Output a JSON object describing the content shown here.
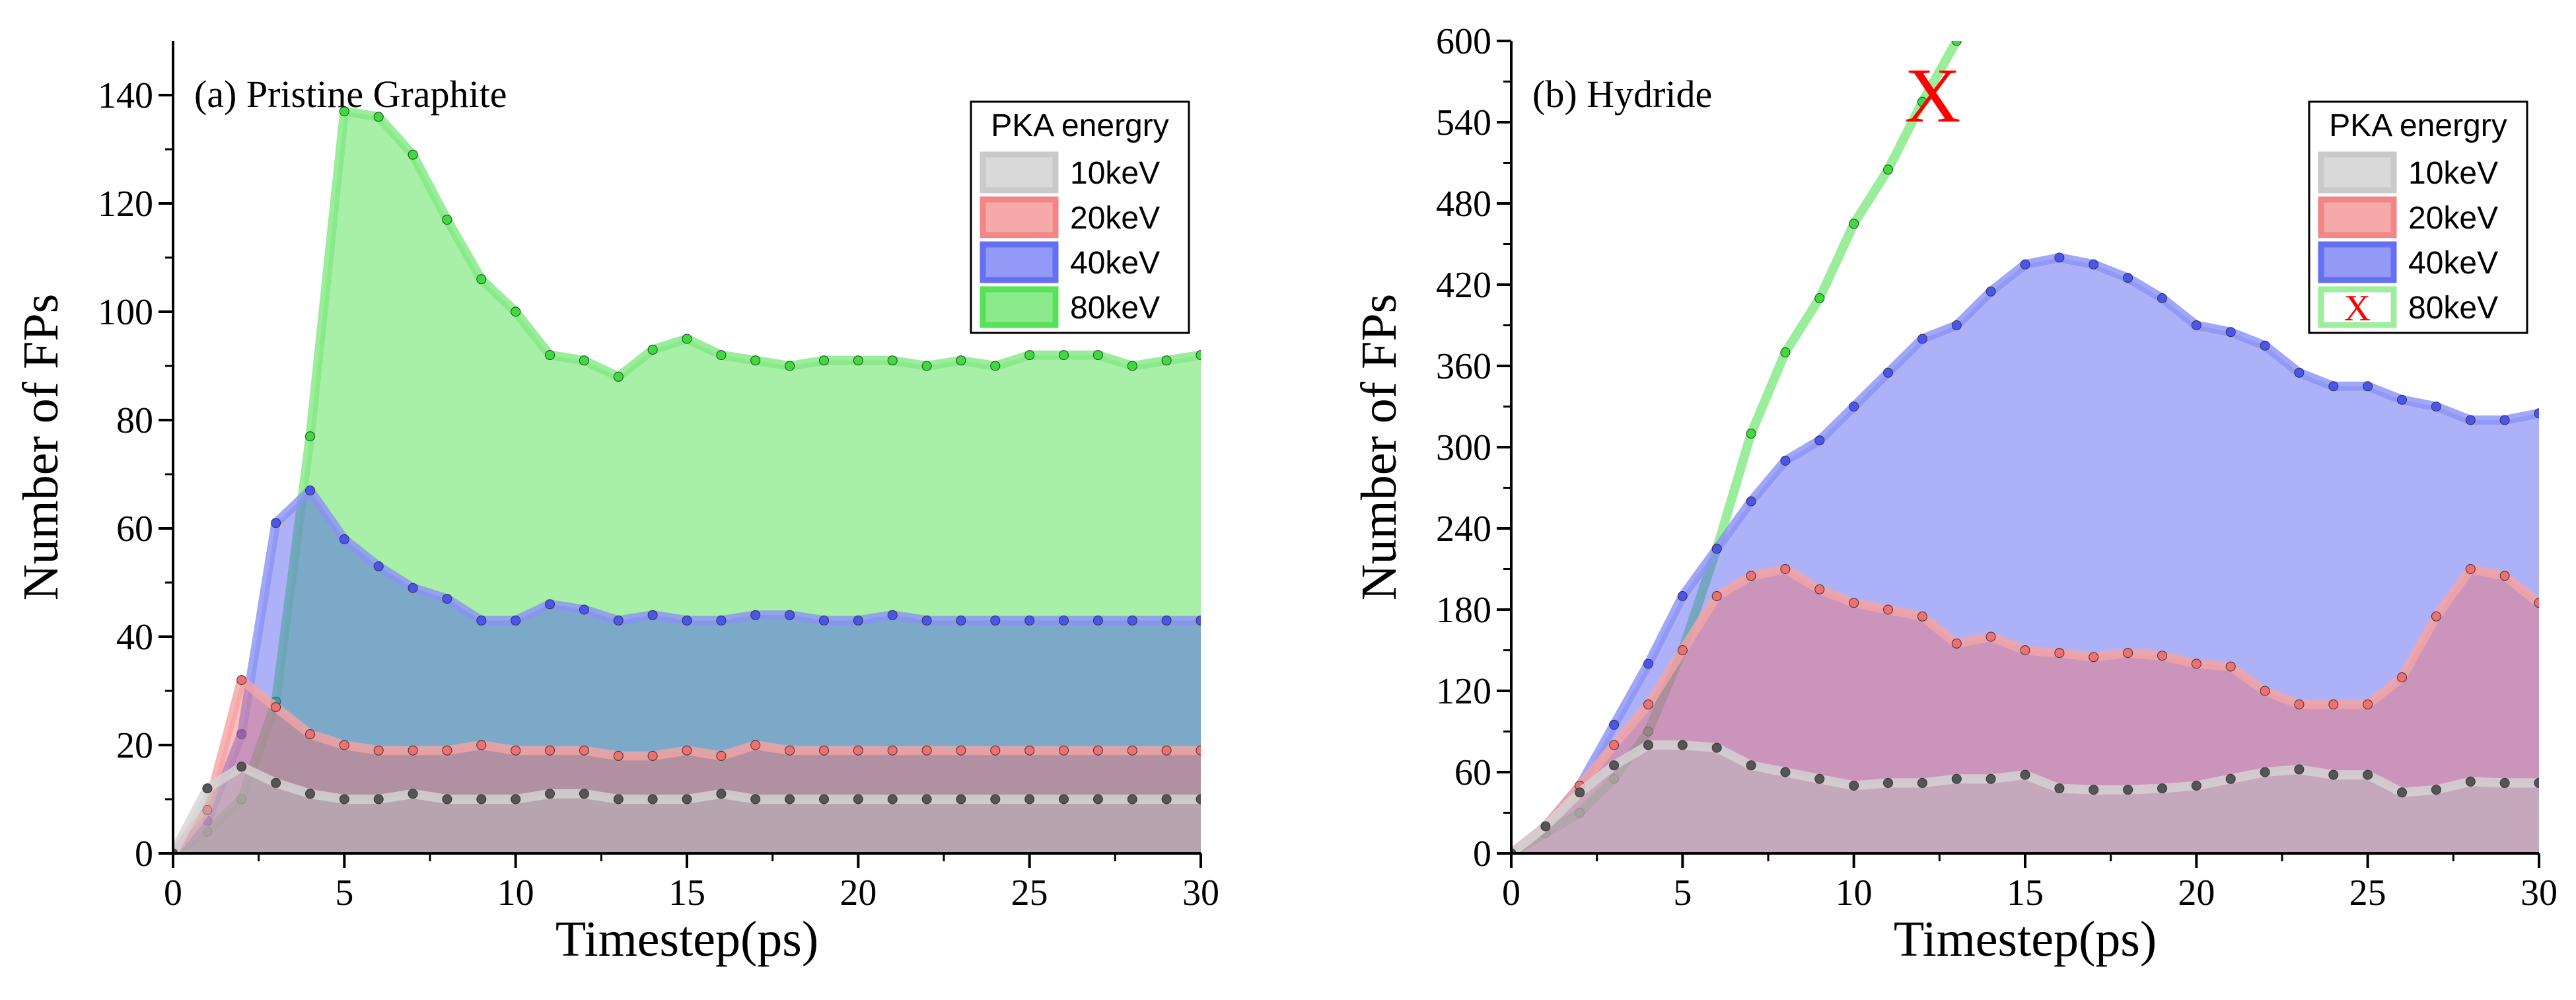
{
  "figure": {
    "panels": [
      {
        "panel_label": "(a) Pristine Graphite",
        "legend_title": "PKA energry"
      },
      {
        "panel_label": "(b) Hydride",
        "legend_title": "PKA energry",
        "offscale_marker": "X"
      }
    ]
  },
  "chart_data": [
    {
      "type": "area",
      "title": "(a) Pristine Graphite",
      "xlabel": "Timestep(ps)",
      "ylabel": "Number of FPs",
      "xlim": [
        0,
        30
      ],
      "ylim": [
        0,
        150
      ],
      "xticks": [
        0,
        5,
        10,
        15,
        20,
        25,
        30
      ],
      "yticks": [
        0,
        20,
        40,
        60,
        80,
        100,
        120,
        140
      ],
      "legend": {
        "title": "PKA energry",
        "position": "top-right"
      },
      "series": [
        {
          "name": "80keV",
          "color": "#3ddc3d",
          "x": [
            0,
            1,
            2,
            3,
            4,
            5,
            6,
            7,
            8,
            9,
            10,
            11,
            12,
            13,
            14,
            15,
            16,
            17,
            18,
            19,
            20,
            21,
            22,
            23,
            24,
            25,
            26,
            27,
            28,
            29,
            30
          ],
          "values": [
            0,
            4,
            10,
            28,
            77,
            137,
            136,
            129,
            117,
            106,
            100,
            92,
            91,
            88,
            93,
            95,
            92,
            91,
            90,
            91,
            91,
            91,
            90,
            91,
            90,
            92,
            92,
            92,
            90,
            91,
            92
          ]
        },
        {
          "name": "40keV",
          "color": "#4a55f0",
          "x": [
            0,
            1,
            2,
            3,
            4,
            5,
            6,
            7,
            8,
            9,
            10,
            11,
            12,
            13,
            14,
            15,
            16,
            17,
            18,
            19,
            20,
            21,
            22,
            23,
            24,
            25,
            26,
            27,
            28,
            29,
            30
          ],
          "values": [
            0,
            6,
            22,
            61,
            67,
            58,
            53,
            49,
            47,
            43,
            43,
            46,
            45,
            43,
            44,
            43,
            43,
            44,
            44,
            43,
            43,
            44,
            43,
            43,
            43,
            43,
            43,
            43,
            43,
            43,
            43
          ]
        },
        {
          "name": "20keV",
          "color": "#f07070",
          "x": [
            0,
            1,
            2,
            3,
            4,
            5,
            6,
            7,
            8,
            9,
            10,
            11,
            12,
            13,
            14,
            15,
            16,
            17,
            18,
            19,
            20,
            21,
            22,
            23,
            24,
            25,
            26,
            27,
            28,
            29,
            30
          ],
          "values": [
            0,
            8,
            32,
            27,
            22,
            20,
            19,
            19,
            19,
            20,
            19,
            19,
            19,
            18,
            18,
            19,
            18,
            20,
            19,
            19,
            19,
            19,
            19,
            19,
            19,
            19,
            19,
            19,
            19,
            19,
            19
          ]
        },
        {
          "name": "10keV",
          "color": "#bfbfbf",
          "x": [
            0,
            1,
            2,
            3,
            4,
            5,
            6,
            7,
            8,
            9,
            10,
            11,
            12,
            13,
            14,
            15,
            16,
            17,
            18,
            19,
            20,
            21,
            22,
            23,
            24,
            25,
            26,
            27,
            28,
            29,
            30
          ],
          "values": [
            0,
            12,
            16,
            13,
            11,
            10,
            10,
            11,
            10,
            10,
            10,
            11,
            11,
            10,
            10,
            10,
            11,
            10,
            10,
            10,
            10,
            10,
            10,
            10,
            10,
            10,
            10,
            10,
            10,
            10,
            10
          ]
        }
      ]
    },
    {
      "type": "area",
      "title": "(b) Hydride",
      "xlabel": "Timestep(ps)",
      "ylabel": "Number of FPs",
      "xlim": [
        0,
        30
      ],
      "ylim": [
        0,
        600
      ],
      "xticks": [
        0,
        5,
        10,
        15,
        20,
        25,
        30
      ],
      "yticks": [
        0,
        60,
        120,
        180,
        240,
        300,
        360,
        420,
        480,
        540,
        600
      ],
      "legend": {
        "title": "PKA energry",
        "position": "top-right"
      },
      "annotations": [
        {
          "text": "X",
          "x": 12.3,
          "y": 560,
          "color": "#ff0000"
        }
      ],
      "series": [
        {
          "name": "80keV",
          "color": "#3ddc3d",
          "style": "line",
          "marker": "X",
          "x": [
            0,
            1,
            2,
            3,
            4,
            5,
            6,
            7,
            8,
            9,
            10,
            11,
            12,
            13
          ],
          "values": [
            0,
            15,
            30,
            55,
            90,
            150,
            225,
            310,
            370,
            410,
            465,
            505,
            555,
            600
          ]
        },
        {
          "name": "40keV",
          "color": "#4a55f0",
          "x": [
            0,
            1,
            2,
            3,
            4,
            5,
            6,
            7,
            8,
            9,
            10,
            11,
            12,
            13,
            14,
            15,
            16,
            17,
            18,
            19,
            20,
            21,
            22,
            23,
            24,
            25,
            26,
            27,
            28,
            29,
            30
          ],
          "values": [
            0,
            20,
            50,
            95,
            140,
            190,
            225,
            260,
            290,
            305,
            330,
            355,
            380,
            390,
            415,
            435,
            440,
            435,
            425,
            410,
            390,
            385,
            375,
            355,
            345,
            345,
            335,
            330,
            320,
            320,
            325
          ]
        },
        {
          "name": "20keV",
          "color": "#f07070",
          "x": [
            0,
            1,
            2,
            3,
            4,
            5,
            6,
            7,
            8,
            9,
            10,
            11,
            12,
            13,
            14,
            15,
            16,
            17,
            18,
            19,
            20,
            21,
            22,
            23,
            24,
            25,
            26,
            27,
            28,
            29,
            30
          ],
          "values": [
            0,
            20,
            50,
            80,
            110,
            150,
            190,
            205,
            210,
            195,
            185,
            180,
            175,
            155,
            160,
            150,
            148,
            145,
            148,
            146,
            140,
            138,
            120,
            110,
            110,
            110,
            130,
            175,
            210,
            205,
            185
          ]
        },
        {
          "name": "10keV",
          "color": "#bfbfbf",
          "x": [
            0,
            1,
            2,
            3,
            4,
            5,
            6,
            7,
            8,
            9,
            10,
            11,
            12,
            13,
            14,
            15,
            16,
            17,
            18,
            19,
            20,
            21,
            22,
            23,
            24,
            25,
            26,
            27,
            28,
            29,
            30
          ],
          "values": [
            0,
            20,
            45,
            65,
            80,
            80,
            78,
            65,
            60,
            55,
            50,
            52,
            52,
            55,
            55,
            58,
            48,
            47,
            47,
            48,
            50,
            55,
            60,
            62,
            58,
            58,
            45,
            47,
            53,
            52,
            52
          ]
        }
      ]
    }
  ]
}
